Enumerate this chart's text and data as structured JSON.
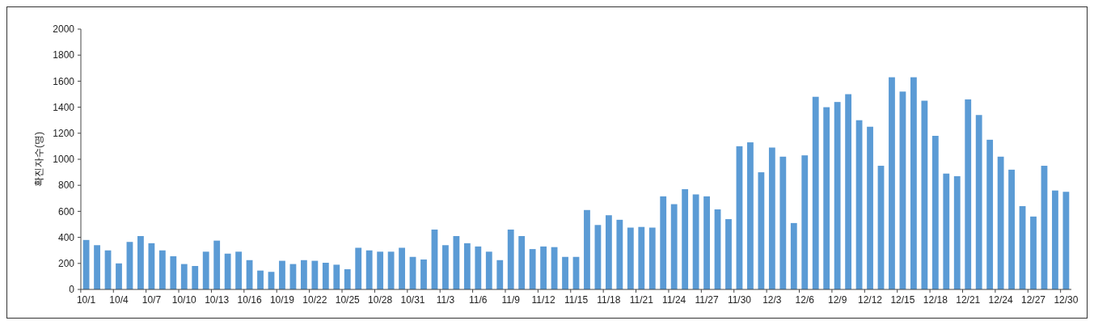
{
  "chart_data": {
    "type": "bar",
    "ylabel": "확진자수(명)",
    "categories": [
      "10/1",
      null,
      null,
      "10/4",
      null,
      null,
      "10/7",
      null,
      null,
      "10/10",
      null,
      null,
      "10/13",
      null,
      null,
      "10/16",
      null,
      null,
      "10/19",
      null,
      null,
      "10/22",
      null,
      null,
      "10/25",
      null,
      null,
      "10/28",
      null,
      null,
      "10/31",
      null,
      null,
      "11/3",
      null,
      null,
      "11/6",
      null,
      null,
      "11/9",
      null,
      null,
      "11/12",
      null,
      null,
      "11/15",
      null,
      null,
      "11/18",
      null,
      null,
      "11/21",
      null,
      null,
      "11/24",
      null,
      null,
      "11/27",
      null,
      null,
      "11/30",
      null,
      null,
      "12/3",
      null,
      null,
      "12/6",
      null,
      null,
      "12/9",
      null,
      null,
      "12/12",
      null,
      null,
      "12/15",
      null,
      null,
      "12/18",
      null,
      null,
      "12/21",
      null,
      null,
      "12/24",
      null,
      null,
      "12/27",
      null,
      null,
      "12/30"
    ],
    "values": [
      380,
      340,
      300,
      200,
      365,
      410,
      355,
      300,
      255,
      195,
      180,
      290,
      375,
      275,
      290,
      225,
      145,
      135,
      220,
      195,
      225,
      220,
      205,
      190,
      155,
      320,
      300,
      290,
      290,
      320,
      250,
      230,
      460,
      340,
      410,
      355,
      330,
      290,
      225,
      460,
      410,
      310,
      330,
      325,
      250,
      250,
      610,
      495,
      570,
      535,
      475,
      480,
      475,
      715,
      655,
      770,
      730,
      715,
      615,
      540,
      1100,
      1130,
      900,
      1090,
      1020,
      510,
      1030,
      1480,
      1400,
      1440,
      1500,
      1300,
      1250,
      950,
      1630,
      1520,
      1630,
      1450,
      1180,
      890,
      870,
      1460,
      1340,
      1150,
      1020,
      920,
      640,
      560,
      950,
      760,
      750
    ],
    "color": "#5b9bd5",
    "ylim": [
      0,
      2000
    ],
    "yticks": [
      0,
      200,
      400,
      600,
      800,
      1000,
      1200,
      1400,
      1600,
      1800,
      2000
    ],
    "grid": false
  }
}
